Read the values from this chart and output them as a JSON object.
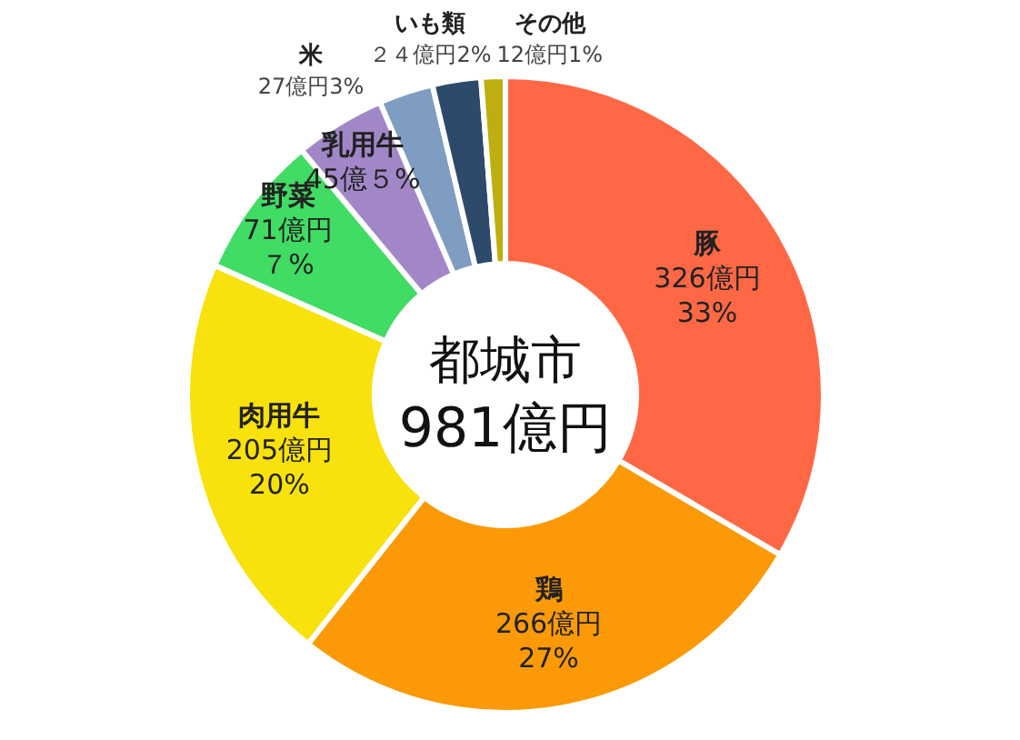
{
  "chart_data": {
    "type": "donut",
    "title": "都城市",
    "subtitle": "981億円",
    "categories": [
      "豚",
      "鶏",
      "肉用牛",
      "野菜",
      "乳用牛",
      "米",
      "いも類",
      "その他"
    ],
    "values": [
      326,
      266,
      205,
      71,
      45,
      27,
      24,
      12
    ],
    "colors": [
      "#ff6845",
      "#fb9a06",
      "#f8e20b",
      "#40dc64",
      "#a287c8",
      "#7f9dc0",
      "#2e4a6b",
      "#bfae0f"
    ],
    "value_labels": [
      "326億円33%",
      "266億円27%",
      "205億円20%",
      "71億円７%",
      "45億５%",
      "27億円3%",
      "２４億円2%",
      "12億円1%"
    ]
  }
}
